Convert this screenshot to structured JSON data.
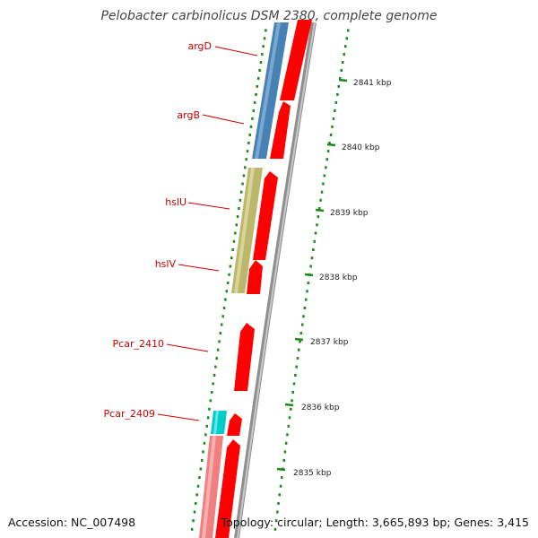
{
  "title": "Pelobacter carbinolicus DSM 2380, complete genome",
  "footer": {
    "accession": "Accession: NC_007498",
    "summary": "Topology: circular; Length: 3,665,893 bp; Genes: 3,415"
  },
  "ticks": [
    {
      "label": "2841 kbp"
    },
    {
      "label": "2840 kbp"
    },
    {
      "label": "2839 kbp"
    },
    {
      "label": "2838 kbp"
    },
    {
      "label": "2837 kbp"
    },
    {
      "label": "2836 kbp"
    },
    {
      "label": "2835 kbp"
    }
  ],
  "gene_labels": [
    {
      "label": "argD"
    },
    {
      "label": "argB"
    },
    {
      "label": "hslU"
    },
    {
      "label": "hslV"
    },
    {
      "label": "Pcar_2410"
    },
    {
      "label": "Pcar_2409"
    }
  ],
  "colors": {
    "label_text": "#cc0000",
    "cds_red": "#ff0000",
    "blue": "#4682b4",
    "khaki": "#bdb76b",
    "cyan": "#00cccc",
    "pink": "#f08080",
    "dots": "#1a8a1a",
    "backbone": "#999999"
  }
}
